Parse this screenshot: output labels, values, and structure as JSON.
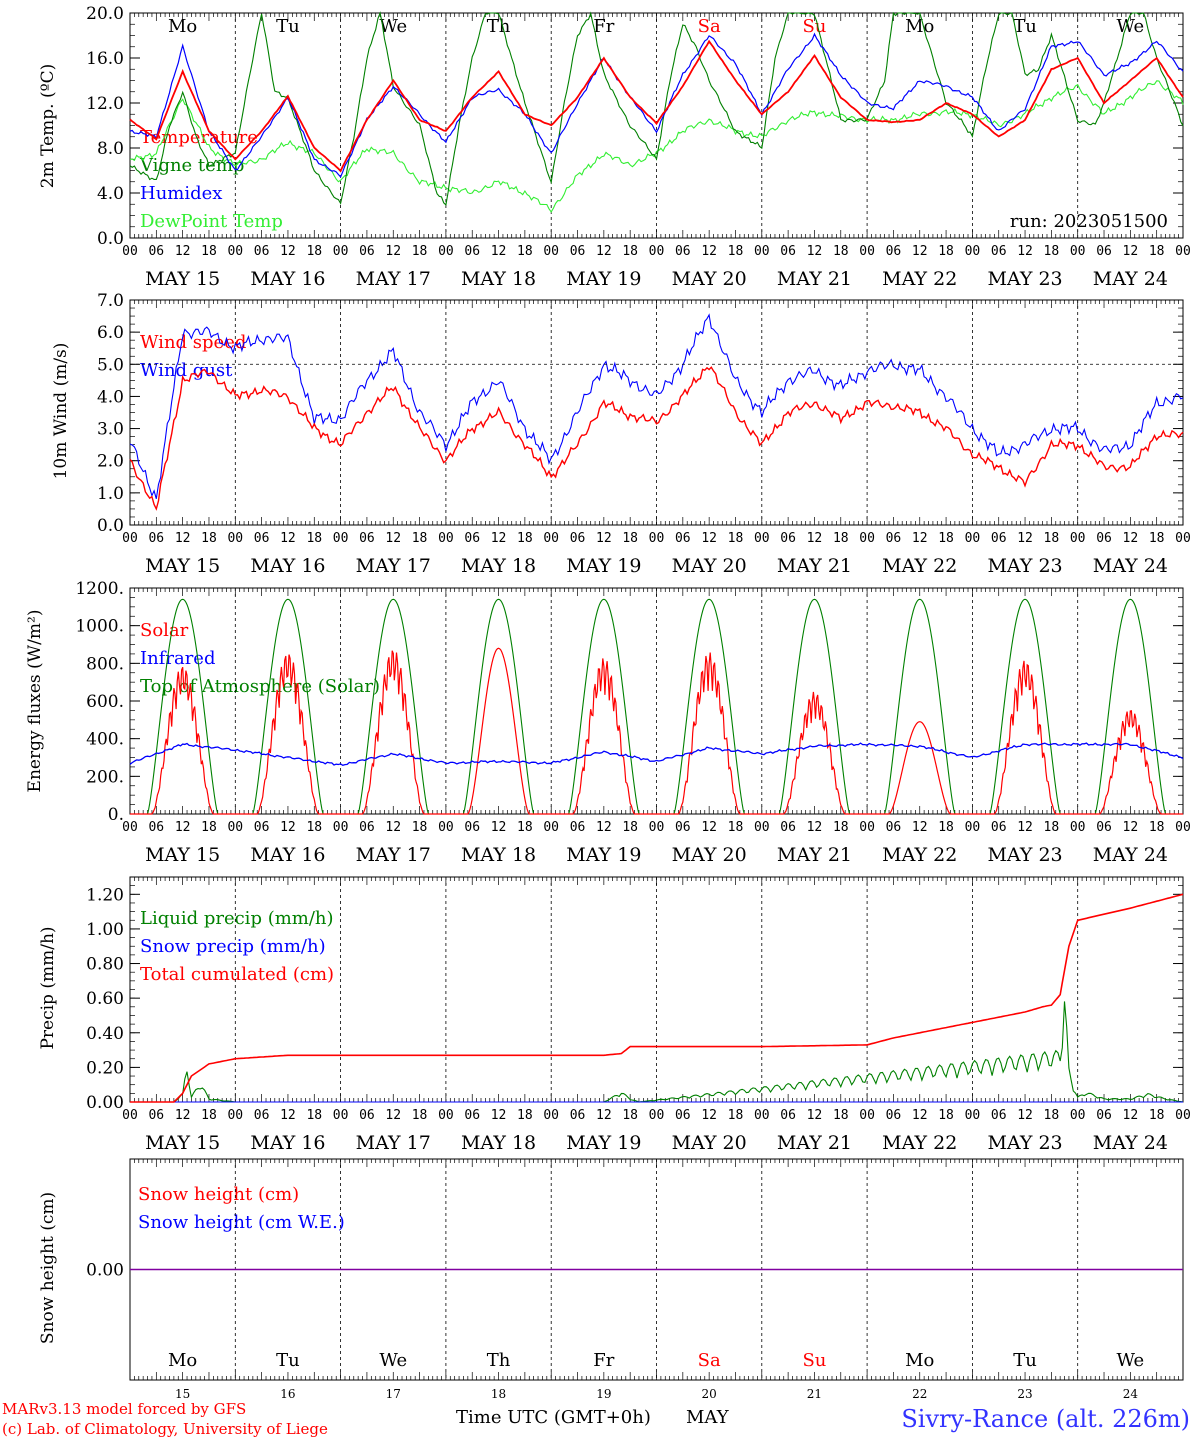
{
  "run_label": "run: 2023051500",
  "days": {
    "names": [
      "Mo",
      "Tu",
      "We",
      "Th",
      "Fr",
      "Sa",
      "Su",
      "Mo",
      "Tu",
      "We"
    ],
    "weekend": [
      false,
      false,
      false,
      false,
      false,
      true,
      true,
      false,
      false,
      false
    ],
    "dates": [
      "MAY 15",
      "MAY 16",
      "MAY 17",
      "MAY 18",
      "MAY 19",
      "MAY 20",
      "MAY 21",
      "MAY 22",
      "MAY 23",
      "MAY 24"
    ],
    "day_numbers": [
      "15",
      "16",
      "17",
      "18",
      "19",
      "20",
      "21",
      "22",
      "23",
      "24"
    ],
    "hour_ticks": [
      "00",
      "06",
      "12",
      "18"
    ],
    "final_hour": "00"
  },
  "colors": {
    "red": "#ff0000",
    "green": "#008000",
    "blue": "#0000ff",
    "lightgreen": "#33ee33",
    "purple": "#8000a0",
    "weekend": "#ff0000",
    "axis": "#000000"
  },
  "footer": {
    "model": "MARv3.13 model forced by GFS",
    "lab": "(c) Lab. of Climatology, University of Liege",
    "time_axis": "Time UTC (GMT+0h)",
    "month": "MAY",
    "station": "Sivry-Rance (alt. 226m)"
  },
  "chart_data": [
    {
      "type": "line",
      "ylabel": "2m Temp. (ºC)",
      "ylim": [
        0,
        20
      ],
      "ytick_labels": [
        "0.0",
        "4.0",
        "8.0",
        "12.0",
        "16.0",
        "20.0"
      ],
      "x_units": "hours since MAY 15 00 UTC",
      "legend": [
        "Temperature",
        "Vigne temp",
        "Humidex",
        "DewPoint Temp"
      ],
      "series": [
        {
          "name": "Temperature",
          "color": "red",
          "x": [
            0,
            6,
            12,
            18,
            24,
            30,
            36,
            42,
            48,
            54,
            60,
            66,
            72,
            78,
            84,
            90,
            96,
            102,
            108,
            114,
            120,
            126,
            132,
            138,
            144,
            150,
            156,
            162,
            168,
            174,
            180,
            186,
            192,
            198,
            204,
            210,
            216,
            222,
            228,
            234,
            240
          ],
          "values": [
            10.5,
            8.8,
            14.8,
            9.5,
            7.0,
            9.5,
            12.6,
            8.0,
            6.0,
            10.5,
            14.0,
            10.5,
            9.5,
            12.5,
            14.8,
            11.0,
            10.0,
            12.5,
            16.0,
            12.5,
            10.2,
            13.5,
            17.5,
            14.0,
            11.0,
            13.0,
            16.2,
            12.5,
            10.5,
            10.3,
            10.5,
            12.0,
            11.0,
            9.0,
            10.5,
            15.0,
            16.0,
            12.0,
            14.0,
            16.0,
            12.5
          ]
        },
        {
          "name": "Vigne temp",
          "color": "green",
          "x": [
            0,
            6,
            9,
            12,
            15,
            18,
            24,
            27,
            30,
            33,
            36,
            42,
            48,
            51,
            54,
            57,
            60,
            66,
            70,
            72,
            75,
            78,
            81,
            84,
            90,
            96,
            99,
            102,
            105,
            108,
            114,
            120,
            123,
            126,
            129,
            132,
            138,
            144,
            147,
            150,
            153,
            156,
            162,
            168,
            172,
            174,
            177,
            180,
            186,
            190,
            192,
            195,
            198,
            201,
            204,
            207,
            210,
            216,
            220,
            222,
            225,
            228,
            231,
            234,
            240
          ],
          "values": [
            6.5,
            5.0,
            10,
            13,
            9,
            6.5,
            7.5,
            14,
            20,
            13,
            12.5,
            6.0,
            3.0,
            9,
            16,
            20,
            13.5,
            10,
            4,
            3.0,
            10,
            16,
            20,
            20,
            12.0,
            5.0,
            12,
            18,
            20,
            14.5,
            10,
            7.0,
            14,
            19,
            17,
            14,
            9.5,
            8.0,
            16,
            20,
            20,
            20,
            10.5,
            10.5,
            14,
            20,
            20,
            20,
            12.0,
            10.2,
            9.0,
            15,
            20,
            20,
            14.5,
            15,
            18,
            10.5,
            10,
            12,
            16,
            20,
            20,
            16,
            10.0
          ]
        },
        {
          "name": "Humidex",
          "color": "blue",
          "x": [
            0,
            6,
            12,
            18,
            24,
            30,
            36,
            42,
            48,
            54,
            60,
            66,
            72,
            78,
            84,
            90,
            96,
            102,
            108,
            114,
            120,
            126,
            132,
            138,
            144,
            150,
            156,
            162,
            168,
            174,
            180,
            186,
            192,
            198,
            204,
            210,
            216,
            222,
            228,
            234,
            240
          ],
          "values": [
            9.5,
            9.0,
            17.0,
            9.5,
            6.0,
            9.0,
            12.5,
            7.0,
            5.5,
            10.5,
            13.5,
            11.0,
            8.5,
            12.5,
            13.2,
            11.0,
            7.5,
            12.0,
            16.0,
            12.5,
            9.5,
            14.5,
            18.0,
            15.5,
            11.0,
            15.0,
            18.0,
            14.5,
            12.0,
            11.5,
            14.0,
            13.5,
            12.5,
            9.5,
            11.5,
            17.0,
            17.5,
            14.5,
            15.5,
            17.5,
            14.8
          ]
        },
        {
          "name": "DewPoint Temp",
          "color": "lightgreen",
          "x": [
            0,
            6,
            12,
            18,
            24,
            30,
            36,
            42,
            48,
            54,
            60,
            66,
            72,
            78,
            84,
            90,
            96,
            102,
            108,
            114,
            120,
            126,
            132,
            138,
            144,
            150,
            156,
            162,
            168,
            174,
            180,
            186,
            192,
            198,
            204,
            210,
            216,
            222,
            228,
            234,
            240
          ],
          "values": [
            7.0,
            7.5,
            12.5,
            8.0,
            6.5,
            7.0,
            8.5,
            7.5,
            5.0,
            8.0,
            7.5,
            5.0,
            4.5,
            4.0,
            5.0,
            4.0,
            2.5,
            5.5,
            7.5,
            6.5,
            7.5,
            9.5,
            10.5,
            9.5,
            9.0,
            10.5,
            11.2,
            10.8,
            10.5,
            10.5,
            11.0,
            11.2,
            11.0,
            10.0,
            11.0,
            12.5,
            13.5,
            11.0,
            12.5,
            14.0,
            12.0
          ]
        }
      ]
    },
    {
      "type": "line",
      "ylabel": "10m Wind (m/s)",
      "ylim": [
        0,
        7
      ],
      "ytick_labels": [
        "0.0",
        "1.0",
        "2.0",
        "3.0",
        "4.0",
        "5.0",
        "6.0",
        "7.0"
      ],
      "reference_line": 5.0,
      "legend": [
        "Wind speed",
        "Wind gust"
      ],
      "series": [
        {
          "name": "Wind speed",
          "color": "red",
          "x": [
            0,
            6,
            12,
            18,
            24,
            30,
            36,
            42,
            48,
            54,
            60,
            66,
            72,
            78,
            84,
            90,
            96,
            102,
            108,
            114,
            120,
            126,
            132,
            138,
            144,
            150,
            156,
            162,
            168,
            174,
            180,
            186,
            192,
            198,
            204,
            210,
            216,
            222,
            228,
            234,
            240
          ],
          "values": [
            2.0,
            0.5,
            4.5,
            4.8,
            4.0,
            4.2,
            4.0,
            3.0,
            2.5,
            3.5,
            4.3,
            3.0,
            2.0,
            3.0,
            3.5,
            2.5,
            1.5,
            2.5,
            3.8,
            3.4,
            3.2,
            4.0,
            5.0,
            3.5,
            2.5,
            3.5,
            3.8,
            3.3,
            3.8,
            3.7,
            3.5,
            3.0,
            2.2,
            1.8,
            1.3,
            2.5,
            2.5,
            1.8,
            1.8,
            2.8,
            2.8
          ]
        },
        {
          "name": "Wind gust",
          "color": "blue",
          "x": [
            0,
            6,
            12,
            18,
            24,
            30,
            36,
            42,
            48,
            54,
            60,
            66,
            72,
            78,
            84,
            90,
            96,
            102,
            108,
            114,
            120,
            126,
            132,
            138,
            144,
            150,
            156,
            162,
            168,
            174,
            180,
            186,
            192,
            198,
            204,
            210,
            216,
            222,
            228,
            234,
            240
          ],
          "values": [
            2.6,
            0.8,
            6.0,
            6.0,
            5.5,
            5.8,
            5.8,
            3.3,
            3.3,
            4.5,
            5.4,
            3.5,
            2.5,
            3.8,
            4.5,
            3.0,
            2.0,
            3.5,
            5.0,
            4.5,
            4.0,
            5.0,
            6.5,
            4.5,
            3.5,
            4.5,
            4.8,
            4.3,
            4.8,
            5.0,
            4.8,
            4.0,
            3.0,
            2.2,
            2.5,
            3.0,
            3.0,
            2.3,
            2.5,
            3.8,
            4.0
          ]
        }
      ]
    },
    {
      "type": "line",
      "ylabel": "Energy fluxes (W/m²)",
      "ylim": [
        0,
        1200
      ],
      "ytick_labels": [
        "0.",
        "200.",
        "400.",
        "600.",
        "800.",
        "1000.",
        "1200."
      ],
      "legend": [
        "Solar",
        "Infrared",
        "Top of Atmosphere (Solar)"
      ],
      "toa_peak": 1140,
      "solar_day_peaks": [
        790,
        860,
        880,
        880,
        830,
        860,
        650,
        490,
        820,
        560
      ],
      "infrared": {
        "x": [
          0,
          12,
          24,
          36,
          48,
          60,
          72,
          84,
          96,
          108,
          120,
          132,
          144,
          156,
          168,
          180,
          192,
          204,
          216,
          228,
          240
        ],
        "values": [
          270,
          370,
          340,
          300,
          260,
          320,
          270,
          280,
          270,
          330,
          280,
          350,
          320,
          360,
          370,
          360,
          300,
          370,
          370,
          370,
          300
        ]
      },
      "series_names": {
        "solar": "Solar",
        "infrared": "Infrared",
        "toa": "Top of Atmosphere (Solar)"
      }
    },
    {
      "type": "line",
      "ylabel": "Precip (mm/h)",
      "ylim": [
        0,
        1.3
      ],
      "ytick_labels": [
        "0.00",
        "0.20",
        "0.40",
        "0.60",
        "0.80",
        "1.00",
        "1.20"
      ],
      "legend": [
        "Liquid precip (mm/h)",
        "Snow precip (mm/h)",
        "Total cumulated (cm)"
      ],
      "series": [
        {
          "name": "Total cumulated (cm)",
          "color": "red",
          "x": [
            0,
            10,
            12,
            14,
            18,
            24,
            36,
            48,
            72,
            96,
            108,
            112,
            114,
            120,
            144,
            168,
            174,
            180,
            192,
            198,
            204,
            208,
            210,
            212,
            214,
            216,
            228,
            240
          ],
          "values": [
            0,
            0,
            0.05,
            0.15,
            0.22,
            0.25,
            0.27,
            0.27,
            0.27,
            0.27,
            0.27,
            0.28,
            0.32,
            0.32,
            0.32,
            0.33,
            0.37,
            0.4,
            0.46,
            0.49,
            0.52,
            0.55,
            0.56,
            0.62,
            0.9,
            1.05,
            1.12,
            1.2
          ]
        },
        {
          "name": "Liquid precip (mm/h)",
          "color": "green",
          "x": [
            0,
            10,
            12,
            13,
            14,
            16,
            18,
            24,
            108,
            112,
            114,
            116,
            216,
            212,
            213,
            214,
            215,
            218,
            222,
            228,
            232,
            236,
            240
          ],
          "values": [
            0,
            0,
            0.05,
            0.24,
            0.03,
            0.12,
            0.02,
            0,
            0,
            0.06,
            0.02,
            0,
            0.03,
            0.3,
            0.68,
            0.2,
            0.1,
            0.06,
            0.02,
            0.02,
            0.05,
            0.02,
            0
          ]
        },
        {
          "name": "Snow precip (mm/h)",
          "color": "blue",
          "x": [
            0,
            240
          ],
          "values": [
            0,
            0
          ]
        }
      ]
    },
    {
      "type": "line",
      "ylabel": "Snow height (cm)",
      "ytick_labels": [
        "0.00"
      ],
      "legend": [
        "Snow height (cm)",
        "Snow height (cm W.E.)"
      ],
      "series": [
        {
          "name": "Snow height (cm)",
          "color": "red",
          "x": [
            0,
            240
          ],
          "values": [
            0,
            0
          ]
        },
        {
          "name": "Snow height (cm W.E.)",
          "color": "blue",
          "x": [
            0,
            240
          ],
          "values": [
            0,
            0
          ]
        }
      ]
    }
  ]
}
